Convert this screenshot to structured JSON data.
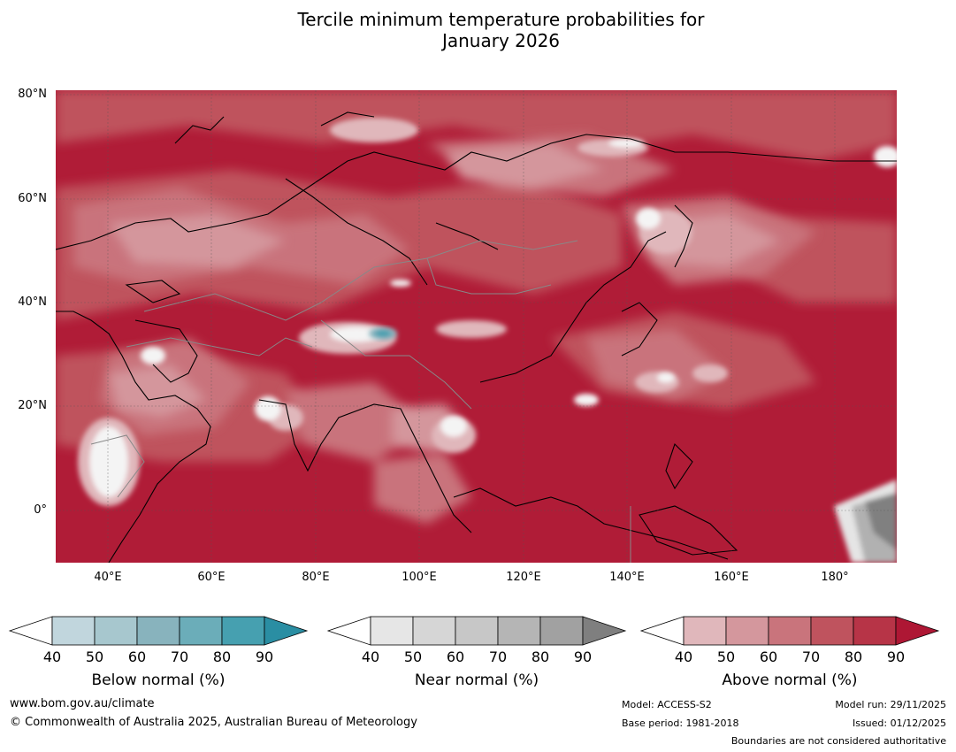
{
  "title_line1": "Tercile minimum temperature probabilities for",
  "title_line2": "January 2026",
  "map": {
    "projection": "equirectangular",
    "lon_range": [
      30,
      192
    ],
    "lat_range": [
      -10,
      81
    ],
    "grid": true,
    "lat_ticks": [
      "80°N",
      "60°N",
      "40°N",
      "20°N",
      "0°"
    ],
    "lon_ticks": [
      "40°E",
      "60°E",
      "80°E",
      "100°E",
      "120°E",
      "140°E",
      "160°E",
      "180°"
    ],
    "dominant_category": "Above normal",
    "colors": {
      "above": [
        "#e0b7bb",
        "#d4969c",
        "#c9737b",
        "#bf525d",
        "#b53447",
        "#b01c37"
      ],
      "near": [
        "#e5e5e5",
        "#d4d4d4",
        "#c5c5c5",
        "#b1b1b1",
        "#9f9f9f",
        "#808080"
      ],
      "below": [
        "#c0d5dc",
        "#a7c7ce",
        "#87b2bd",
        "#6aaab7",
        "#449eaf",
        "#2e8ea3"
      ]
    }
  },
  "legends": [
    {
      "title": "Below normal (%)",
      "ticks": [
        "40",
        "50",
        "60",
        "70",
        "80",
        "90"
      ],
      "colors": [
        "#c1d6dd",
        "#a7c7ce",
        "#88b3bd",
        "#6badb9",
        "#46a0b0",
        "#2a8ea3"
      ]
    },
    {
      "title": "Near normal (%)",
      "ticks": [
        "40",
        "50",
        "60",
        "70",
        "80",
        "90"
      ],
      "colors": [
        "#e6e6e6",
        "#d6d6d6",
        "#c7c7c7",
        "#b5b5b5",
        "#a1a1a1",
        "#7f7f7f"
      ]
    },
    {
      "title": "Above normal (%)",
      "ticks": [
        "40",
        "50",
        "60",
        "70",
        "80",
        "90"
      ],
      "colors": [
        "#e0b7bb",
        "#d4979d",
        "#c9747c",
        "#bf535e",
        "#b73447",
        "#ae1734"
      ]
    }
  ],
  "footer": {
    "website": "www.bom.gov.au/climate",
    "copyright": "© Commonwealth of Australia 2025, Australian Bureau of Meteorology",
    "model": "Model: ACCESS-S2",
    "base_period": "Base period: 1981-2018",
    "model_run": "Model run: 29/11/2025",
    "issued": "Issued: 01/12/2025",
    "disclaimer": "Boundaries are not considered authoritative"
  }
}
